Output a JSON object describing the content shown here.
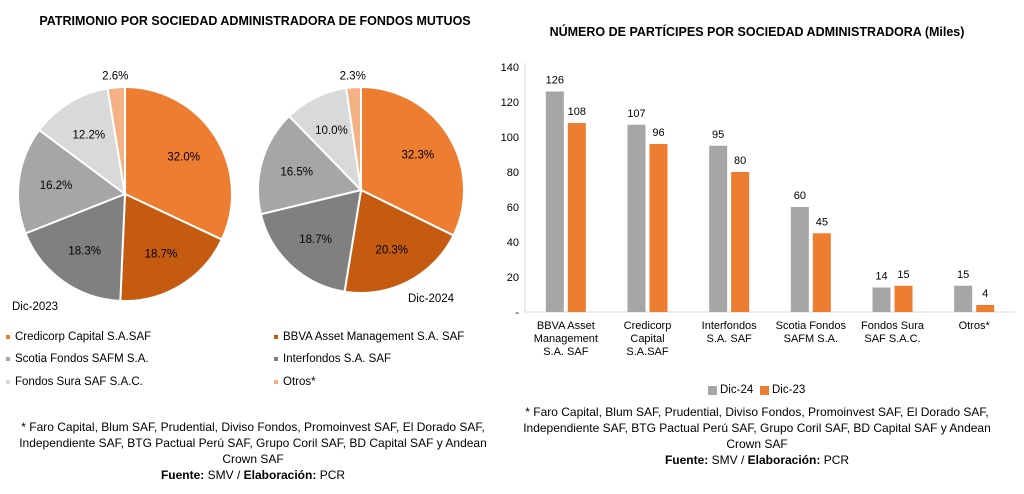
{
  "left": {
    "title": "PATRIMONIO POR SOCIEDAD ADMINISTRADORA DE FONDOS MUTUOS",
    "label_2023": "Dic-2023",
    "label_2024": "Dic-2024",
    "legend": [
      {
        "name": "Credicorp Capital S.A.SAF",
        "color": "#ED7D31"
      },
      {
        "name": "BBVA Asset Management S.A. SAF",
        "color": "#C55A11"
      },
      {
        "name": "Scotia Fondos SAFM S.A.",
        "color": "#A6A6A6"
      },
      {
        "name": "Interfondos S.A. SAF",
        "color": "#808080"
      },
      {
        "name": "Fondos Sura SAF S.A.C.",
        "color": "#D9D9D9"
      },
      {
        "name": "Otros*",
        "color": "#F4B183"
      }
    ],
    "note": "* Faro Capital, Blum SAF, Prudential, Diviso Fondos, Promoinvest SAF, El Dorado SAF, Independiente SAF, BTG Pactual Perú SAF, Grupo Coril SAF, BD Capital SAF y Andean Crown SAF",
    "source_label": "Fuente:",
    "source_value": "SMV /",
    "elab_label": "Elaboración:",
    "elab_value": "PCR"
  },
  "right": {
    "title": "NÚMERO DE PARTÍCIPES POR SOCIEDAD ADMINISTRADORA (Miles)",
    "note": "* Faro Capital, Blum SAF, Prudential, Diviso Fondos, Promoinvest SAF, El Dorado SAF, Independiente SAF, BTG Pactual Perú SAF, Grupo Coril SAF, BD Capital SAF y Andean Crown SAF",
    "source_label": "Fuente:",
    "source_value": "SMV /",
    "elab_label": "Elaboración:",
    "elab_value": "PCR"
  },
  "chart_data": [
    {
      "type": "pie",
      "label": "Dic-2023",
      "slices": [
        {
          "name": "Credicorp Capital S.A.SAF",
          "value": 32.0,
          "label": "32.0%",
          "color": "#ED7D31"
        },
        {
          "name": "BBVA Asset Management S.A. SAF",
          "value": 18.7,
          "label": "18.7%",
          "color": "#C55A11"
        },
        {
          "name": "Interfondos S.A. SAF",
          "value": 18.3,
          "label": "18.3%",
          "color": "#808080"
        },
        {
          "name": "Scotia Fondos SAFM S.A.",
          "value": 16.2,
          "label": "16.2%",
          "color": "#A6A6A6"
        },
        {
          "name": "Fondos Sura SAF S.A.C.",
          "value": 12.2,
          "label": "12.2%",
          "color": "#D9D9D9"
        },
        {
          "name": "Otros*",
          "value": 2.6,
          "label": "2.6%",
          "color": "#F4B183"
        }
      ]
    },
    {
      "type": "pie",
      "label": "Dic-2024",
      "slices": [
        {
          "name": "Credicorp Capital S.A.SAF",
          "value": 32.3,
          "label": "32.3%",
          "color": "#ED7D31"
        },
        {
          "name": "BBVA Asset Management S.A. SAF",
          "value": 20.3,
          "label": "20.3%",
          "color": "#C55A11"
        },
        {
          "name": "Interfondos S.A. SAF",
          "value": 18.7,
          "label": "18.7%",
          "color": "#808080"
        },
        {
          "name": "Scotia Fondos SAFM S.A.",
          "value": 16.5,
          "label": "16.5%",
          "color": "#A6A6A6"
        },
        {
          "name": "Fondos Sura SAF S.A.C.",
          "value": 10.0,
          "label": "10.0%",
          "color": "#D9D9D9"
        },
        {
          "name": "Otros*",
          "value": 2.3,
          "label": "2.3%",
          "color": "#F4B183"
        }
      ]
    },
    {
      "type": "bar",
      "title": "NÚMERO DE PARTÍCIPES POR SOCIEDAD ADMINISTRADORA (Miles)",
      "categories": [
        [
          "BBVA Asset",
          "Management",
          "S.A. SAF"
        ],
        [
          "Credicorp",
          "Capital",
          "S.A.SAF"
        ],
        [
          "Interfondos",
          "S.A. SAF"
        ],
        [
          "Scotia Fondos",
          "SAFM S.A."
        ],
        [
          "Fondos Sura",
          "SAF S.A.C."
        ],
        [
          "Otros*"
        ]
      ],
      "series": [
        {
          "name": "Dic-24",
          "color": "#A6A6A6",
          "values": [
            126,
            107,
            95,
            60,
            14,
            15
          ]
        },
        {
          "name": "Dic-23",
          "color": "#ED7D31",
          "values": [
            108,
            96,
            80,
            45,
            15,
            4
          ]
        }
      ],
      "ylim": [
        0,
        140
      ],
      "yticks": [
        "140",
        "120",
        "100",
        "80",
        "60",
        "40",
        "20",
        "-"
      ],
      "legend_position": "bottom",
      "grid": false
    }
  ]
}
